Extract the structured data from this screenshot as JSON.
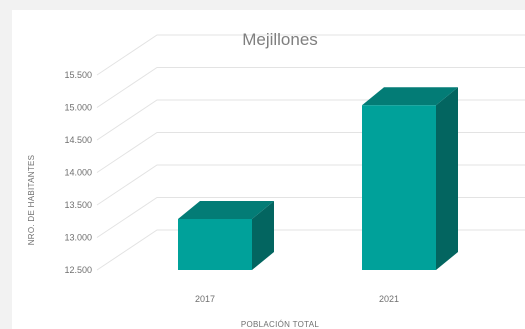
{
  "chart_data": {
    "type": "bar",
    "title": "Mejillones",
    "xlabel": "POBLACIÓN TOTAL",
    "ylabel": "NRO. DE HABITANTES",
    "categories": [
      "2017",
      "2021"
    ],
    "values": [
      13500,
      15250
    ],
    "y_ticks": [
      "12.500",
      "13.000",
      "13.500",
      "14.000",
      "14.500",
      "15.000",
      "15.500"
    ],
    "y_tick_values": [
      12500,
      13000,
      13500,
      14000,
      14500,
      15000,
      15500
    ],
    "ylim": [
      12500,
      15500
    ],
    "grid": true,
    "legend": "none",
    "bar_front_color": "#00a19a",
    "bar_top_color": "#037c76",
    "bar_side_color": "#036560"
  }
}
